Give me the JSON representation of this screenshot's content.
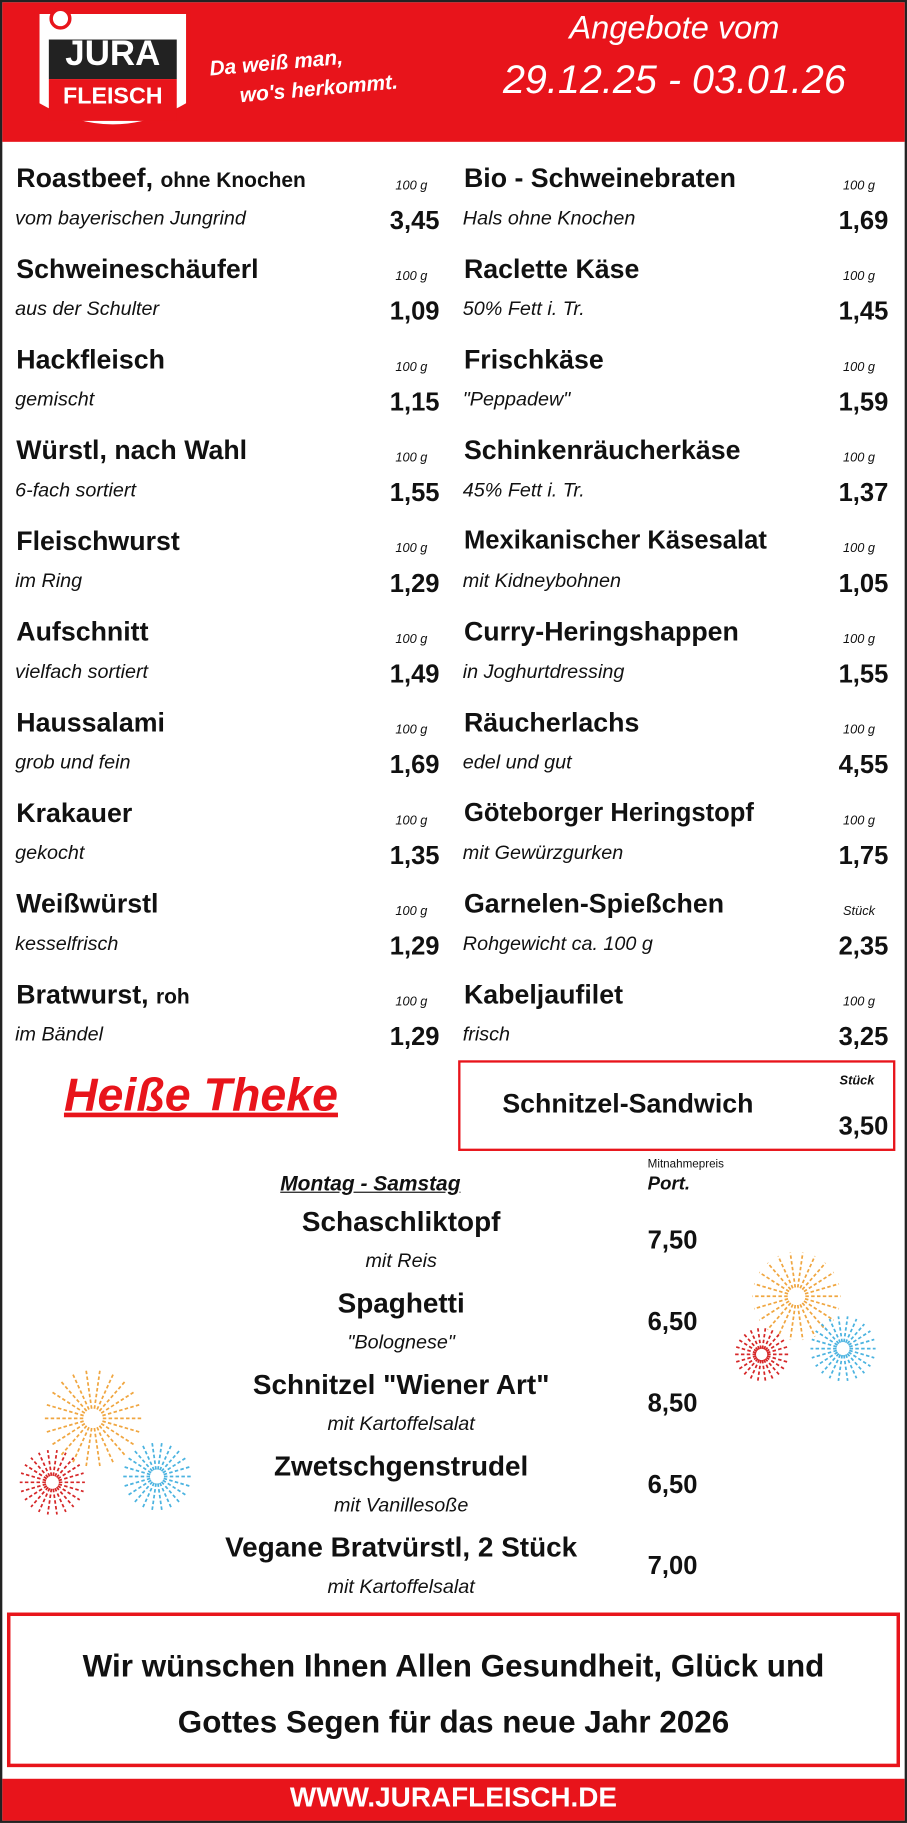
{
  "header": {
    "logo_top": "JURA",
    "logo_bottom": "FLEISCH",
    "slogan_line1": "Da weiß man,",
    "slogan_line2": "wo's herkommt.",
    "offer_title": "Angebote vom",
    "offer_dates": "29.12.25 - 03.01.26"
  },
  "offers": {
    "left": [
      {
        "name": "Roastbeef,",
        "name_suffix": "ohne Knochen",
        "description": "vom bayerischen Jungrind",
        "unit": "100 g",
        "price": "3,45"
      },
      {
        "name": "Schweineschäuferl",
        "description": "aus der Schulter",
        "unit": "100 g",
        "price": "1,09"
      },
      {
        "name": "Hackfleisch",
        "description": "gemischt",
        "unit": "100 g",
        "price": "1,15"
      },
      {
        "name": "Würstl, nach Wahl",
        "description": "6-fach sortiert",
        "unit": "100 g",
        "price": "1,55"
      },
      {
        "name": "Fleischwurst",
        "description": "im Ring",
        "unit": "100 g",
        "price": "1,29"
      },
      {
        "name": "Aufschnitt",
        "description": "vielfach sortiert",
        "unit": "100 g",
        "price": "1,49"
      },
      {
        "name": "Haussalami",
        "description": "grob und fein",
        "unit": "100 g",
        "price": "1,69"
      },
      {
        "name": "Krakauer",
        "description": "gekocht",
        "unit": "100 g",
        "price": "1,35"
      },
      {
        "name": "Weißwürstl",
        "description": "kesselfrisch",
        "unit": "100 g",
        "price": "1,29"
      },
      {
        "name": "Bratwurst,",
        "name_suffix": "roh",
        "description": "im Bändel",
        "unit": "100 g",
        "price": "1,29"
      }
    ],
    "right": [
      {
        "name": "Bio - Schweinebraten",
        "description": "Hals ohne Knochen",
        "unit": "100 g",
        "price": "1,69"
      },
      {
        "name": "Raclette Käse",
        "description": "50% Fett i. Tr.",
        "unit": "100 g",
        "price": "1,45"
      },
      {
        "name": "Frischkäse",
        "description": "\"Peppadew\"",
        "unit": "100 g",
        "price": "1,59"
      },
      {
        "name": "Schinkenräucherkäse",
        "description": "45% Fett i. Tr.",
        "unit": "100 g",
        "price": "1,37"
      },
      {
        "name": "Mexikanischer Käsesalat",
        "description": "mit Kidneybohnen",
        "unit": "100 g",
        "price": "1,05"
      },
      {
        "name": "Curry-Heringshappen",
        "description": "in Joghurtdressing",
        "unit": "100 g",
        "price": "1,55"
      },
      {
        "name": "Räucherlachs",
        "description": "edel und gut",
        "unit": "100 g",
        "price": "4,55"
      },
      {
        "name": "Göteborger Heringstopf",
        "description": "mit Gewürzgurken",
        "unit": "100 g",
        "price": "1,75"
      },
      {
        "name": "Garnelen-Spießchen",
        "description": "Rohgewicht ca. 100 g",
        "unit": "Stück",
        "price": "2,35"
      },
      {
        "name": "Kabeljaufilet",
        "description": "frisch",
        "unit": "100 g",
        "price": "3,25"
      }
    ]
  },
  "hot_counter": {
    "title": "Heiße Theke",
    "special": {
      "name": "Schnitzel-Sandwich",
      "unit": "Stück",
      "price": "3,50"
    },
    "days": "Montag  -  Samstag",
    "price_note": "Mitnahmepreis",
    "unit": "Port.",
    "dishes": [
      {
        "name": "Schaschliktopf",
        "description": "mit Reis",
        "price": "7,50"
      },
      {
        "name": "Spaghetti",
        "description": "\"Bolognese\"",
        "price": "6,50"
      },
      {
        "name": "Schnitzel \"Wiener Art\"",
        "description": "mit Kartoffelsalat",
        "price": "8,50"
      },
      {
        "name": "Zwetschgenstrudel",
        "description": "mit Vanillesoße",
        "price": "6,50"
      },
      {
        "name": "Vegane Bratvürstl, 2 Stück",
        "description": "mit Kartoffelsalat",
        "price": "7,00"
      }
    ]
  },
  "greeting": {
    "line1": "Wir wünschen Ihnen Allen Gesundheit, Glück und",
    "line2": "Gottes Segen für das neue Jahr 2026"
  },
  "footer": {
    "website": "WWW.JURAFLEISCH.DE"
  }
}
